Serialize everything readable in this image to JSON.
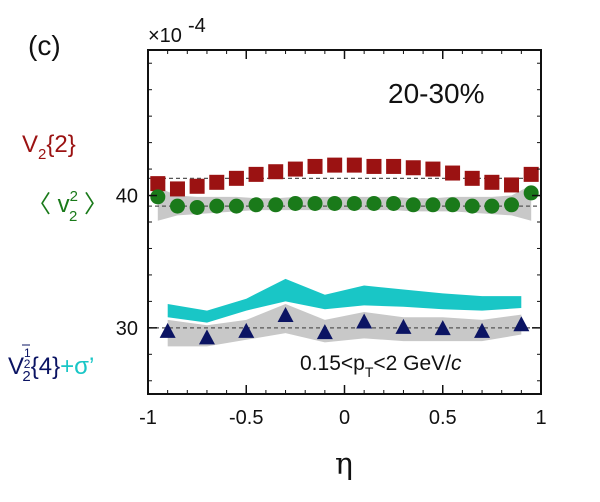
{
  "panel_label": "(c)",
  "centrality": "20-30%",
  "exponent_label": "×10",
  "exponent_power": "-4",
  "kinematic_cut": {
    "prefix": "0.15<p",
    "subscript": "T",
    "middle": "<2 GeV/",
    "suffix": "c"
  },
  "colors": {
    "v2_2": "#9b1212",
    "v2_mean": "#1a7a1a",
    "v2_4": "#0b1463",
    "sigma": "#19c6c6",
    "band": "#c8c8c8",
    "reference_line": "#555555"
  },
  "legend": {
    "v2_2": {
      "main": "V",
      "sub": "2",
      "rest": "{2}"
    },
    "v2_mean": {
      "open": "〈 v",
      "sup": "2",
      "sub": "2",
      "close": " 〉"
    },
    "v2_4": {
      "main": "V",
      "sup_num": "1",
      "sup_den": "2",
      "sub": "2",
      "rest": "{4}",
      "plus": "+σ’"
    }
  },
  "chart_data": {
    "type": "scatter",
    "title": "",
    "xlabel": "η",
    "ylabel": "",
    "xlim": [
      -1,
      1
    ],
    "ylim": [
      25,
      51
    ],
    "x_ticks": [
      -1,
      -0.5,
      0,
      0.5,
      1
    ],
    "x_tick_labels": [
      "-1",
      "-0.5",
      "0",
      "0.5",
      "1"
    ],
    "y_ticks": [
      30,
      40
    ],
    "y_tick_labels": [
      "30",
      "40"
    ],
    "reference_lines": [
      41.3,
      39.2,
      30.0
    ],
    "series": [
      {
        "key": "v2_2",
        "marker": "square",
        "x": [
          -0.95,
          -0.85,
          -0.75,
          -0.65,
          -0.55,
          -0.45,
          -0.35,
          -0.25,
          -0.15,
          -0.05,
          0.05,
          0.15,
          0.25,
          0.35,
          0.45,
          0.55,
          0.65,
          0.75,
          0.85,
          0.95
        ],
        "values": [
          40.9,
          40.5,
          40.7,
          41.0,
          41.3,
          41.6,
          41.8,
          42.0,
          42.2,
          42.3,
          42.3,
          42.2,
          42.2,
          42.1,
          42.0,
          41.7,
          41.3,
          41.0,
          40.8,
          41.6
        ]
      },
      {
        "key": "v2_mean",
        "marker": "circle",
        "band_low": [
          38.1,
          38.5,
          38.6,
          38.7,
          38.8,
          38.9,
          38.9,
          38.9,
          38.9,
          38.9,
          38.9,
          38.9,
          38.9,
          38.8,
          38.8,
          38.8,
          38.7,
          38.6,
          38.5,
          38.1
        ],
        "band_high": [
          40.6,
          40.0,
          39.9,
          39.9,
          39.9,
          39.8,
          39.8,
          39.9,
          39.9,
          39.9,
          39.9,
          39.9,
          39.9,
          39.8,
          39.8,
          39.9,
          39.9,
          39.9,
          40.0,
          40.8
        ],
        "x": [
          -0.95,
          -0.85,
          -0.75,
          -0.65,
          -0.55,
          -0.45,
          -0.35,
          -0.25,
          -0.15,
          -0.05,
          0.05,
          0.15,
          0.25,
          0.35,
          0.45,
          0.55,
          0.65,
          0.75,
          0.85,
          0.95
        ],
        "values": [
          39.9,
          39.2,
          39.1,
          39.2,
          39.2,
          39.3,
          39.3,
          39.4,
          39.4,
          39.4,
          39.4,
          39.4,
          39.4,
          39.3,
          39.3,
          39.3,
          39.2,
          39.2,
          39.3,
          40.2
        ]
      },
      {
        "key": "v2_4",
        "marker": "triangle",
        "x": [
          -0.9,
          -0.7,
          -0.5,
          -0.3,
          -0.1,
          0.1,
          0.3,
          0.5,
          0.7,
          0.9
        ],
        "values": [
          29.7,
          29.2,
          29.7,
          30.9,
          29.6,
          30.4,
          30.0,
          29.9,
          29.7,
          30.2
        ],
        "band_low": [
          28.6,
          28.6,
          29.1,
          29.6,
          28.9,
          29.2,
          29.0,
          29.0,
          29.0,
          29.5
        ],
        "band_high": [
          30.6,
          30.2,
          30.6,
          31.8,
          30.6,
          31.2,
          30.8,
          30.8,
          30.6,
          31.0
        ]
      },
      {
        "key": "sigma",
        "marker": "band",
        "x": [
          -0.9,
          -0.7,
          -0.5,
          -0.3,
          -0.1,
          0.1,
          0.3,
          0.5,
          0.7,
          0.9
        ],
        "band_low": [
          30.8,
          30.4,
          31.3,
          32.0,
          31.4,
          31.7,
          31.6,
          31.4,
          31.3,
          31.5
        ],
        "band_high": [
          31.8,
          31.3,
          32.2,
          33.7,
          32.5,
          33.2,
          32.9,
          32.6,
          32.4,
          32.4
        ]
      }
    ]
  }
}
